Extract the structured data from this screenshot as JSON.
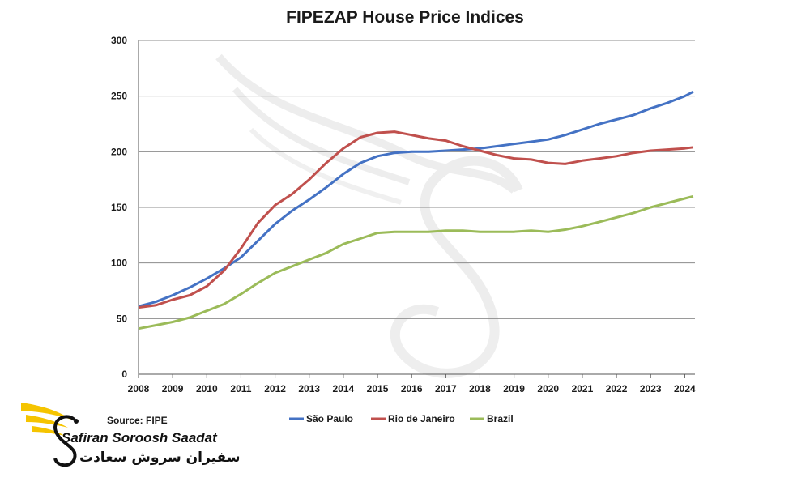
{
  "chart_data": {
    "type": "line",
    "title": "FIPEZAP House Price Indices",
    "xlabel": "",
    "ylabel": "",
    "xlim": [
      2008,
      2024.3
    ],
    "ylim": [
      0,
      300
    ],
    "yticks": [
      0,
      50,
      100,
      150,
      200,
      250,
      300
    ],
    "xticks": [
      2008,
      2009,
      2010,
      2011,
      2012,
      2013,
      2014,
      2015,
      2016,
      2017,
      2018,
      2019,
      2020,
      2021,
      2022,
      2023,
      2024
    ],
    "grid": "horizontal",
    "legend": "bottom",
    "source": "Source: FIPE",
    "series": [
      {
        "name": "São Paulo",
        "color": "#4472c4",
        "x": [
          2008,
          2008.5,
          2009,
          2009.5,
          2010,
          2010.5,
          2011,
          2011.5,
          2012,
          2012.5,
          2013,
          2013.5,
          2014,
          2014.5,
          2015,
          2015.5,
          2016,
          2016.5,
          2017,
          2017.5,
          2018,
          2018.5,
          2019,
          2019.5,
          2020,
          2020.5,
          2021,
          2021.5,
          2022,
          2022.5,
          2023,
          2023.5,
          2024,
          2024.25
        ],
        "y": [
          61,
          65,
          71,
          78,
          86,
          95,
          105,
          120,
          135,
          147,
          157,
          168,
          180,
          190,
          196,
          199,
          200,
          200,
          201,
          202,
          203,
          205,
          207,
          209,
          211,
          215,
          220,
          225,
          229,
          233,
          239,
          244,
          250,
          254
        ]
      },
      {
        "name": "Rio de Janeiro",
        "color": "#c0504d",
        "x": [
          2008,
          2008.5,
          2009,
          2009.5,
          2010,
          2010.5,
          2011,
          2011.5,
          2012,
          2012.5,
          2013,
          2013.5,
          2014,
          2014.5,
          2015,
          2015.5,
          2016,
          2016.5,
          2017,
          2017.5,
          2018,
          2018.5,
          2019,
          2019.5,
          2020,
          2020.5,
          2021,
          2021.5,
          2022,
          2022.5,
          2023,
          2023.5,
          2024,
          2024.25
        ],
        "y": [
          60,
          62,
          67,
          71,
          79,
          93,
          113,
          136,
          152,
          162,
          175,
          190,
          203,
          213,
          217,
          218,
          215,
          212,
          210,
          205,
          201,
          197,
          194,
          193,
          190,
          189,
          192,
          194,
          196,
          199,
          201,
          202,
          203,
          204
        ]
      },
      {
        "name": "Brazil",
        "color": "#9bbb59",
        "x": [
          2008,
          2008.5,
          2009,
          2009.5,
          2010,
          2010.5,
          2011,
          2011.5,
          2012,
          2012.5,
          2013,
          2013.5,
          2014,
          2014.5,
          2015,
          2015.5,
          2016,
          2016.5,
          2017,
          2017.5,
          2018,
          2018.5,
          2019,
          2019.5,
          2020,
          2020.5,
          2021,
          2021.5,
          2022,
          2022.5,
          2023,
          2023.5,
          2024,
          2024.25
        ],
        "y": [
          41,
          44,
          47,
          51,
          57,
          63,
          72,
          82,
          91,
          97,
          103,
          109,
          117,
          122,
          127,
          128,
          128,
          128,
          129,
          129,
          128,
          128,
          128,
          129,
          128,
          130,
          133,
          137,
          141,
          145,
          150,
          154,
          158,
          160
        ]
      }
    ]
  },
  "watermark": {
    "brand_en": "Safiran Soroosh Saadat",
    "brand_fa": "سفیران سروش سعادت",
    "logo_color": "#f5c400"
  }
}
